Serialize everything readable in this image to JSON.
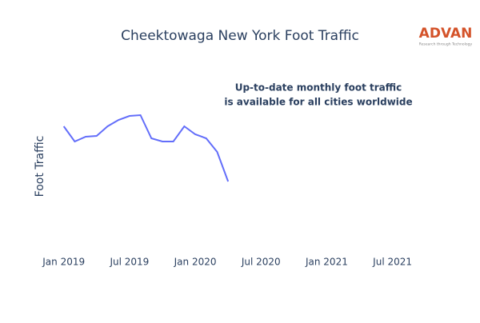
{
  "chart_data": {
    "type": "line",
    "title": "Cheektowaga New York Foot Traffic",
    "y_label": "Foot Traffic",
    "annotation": [
      "Up-to-date monthly foot traffic",
      "is available for all cities worldwide"
    ],
    "logo": {
      "name": "ADVAN",
      "tagline": "Research through Technology"
    },
    "x": [
      "2019-01",
      "2019-02",
      "2019-03",
      "2019-04",
      "2019-05",
      "2019-06",
      "2019-07",
      "2019-08",
      "2019-09",
      "2019-10",
      "2019-11",
      "2019-12",
      "2020-01",
      "2020-02",
      "2020-03",
      "2020-04"
    ],
    "series": [
      {
        "name": "Foot Traffic",
        "color": "#636efa",
        "values": [
          142,
          123,
          129,
          130,
          142,
          150,
          155,
          156,
          127,
          123,
          123,
          142,
          132,
          127,
          110,
          73
        ]
      }
    ],
    "xlim": [
      "2018-12",
      "2021-09"
    ],
    "xticks": [
      {
        "value": "2019-01",
        "label": "Jan 2019"
      },
      {
        "value": "2019-07",
        "label": "Jul 2019"
      },
      {
        "value": "2020-01",
        "label": "Jan 2020"
      },
      {
        "value": "2020-07",
        "label": "Jul 2020"
      },
      {
        "value": "2021-01",
        "label": "Jan 2021"
      },
      {
        "value": "2021-07",
        "label": "Jul 2021"
      }
    ],
    "ylim": [
      0,
      230
    ],
    "grid": false
  }
}
